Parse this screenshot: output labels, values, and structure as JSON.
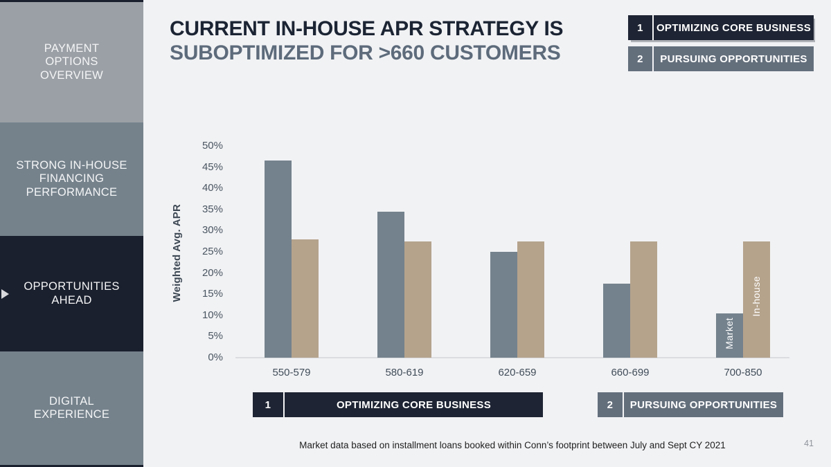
{
  "title": {
    "line1": "CURRENT IN-HOUSE APR STRATEGY IS",
    "line2": "SUBOPTIMIZED FOR >660 CUSTOMERS"
  },
  "sidebar": {
    "items": [
      {
        "label": "PAYMENT\nOPTIONS\nOVERVIEW",
        "active": false
      },
      {
        "label": "STRONG IN-HOUSE\nFINANCING\nPERFORMANCE",
        "active": false
      },
      {
        "label": "OPPORTUNITIES\nAHEAD",
        "active": true
      },
      {
        "label": "DIGITAL\nEXPERIENCE",
        "active": false
      }
    ]
  },
  "top_legend": {
    "items": [
      {
        "number": "1",
        "label": "OPTIMIZING CORE BUSINESS"
      },
      {
        "number": "2",
        "label": "PURSUING OPPORTUNITIES"
      }
    ]
  },
  "bottom_legend": {
    "items": [
      {
        "number": "1",
        "label": "OPTIMIZING CORE BUSINESS"
      },
      {
        "number": "2",
        "label": "PURSUING OPPORTUNITIES"
      }
    ]
  },
  "chart_data": {
    "type": "bar",
    "title": "",
    "xlabel": "",
    "ylabel": "Weighted Avg. APR",
    "categories": [
      "550-579",
      "580-619",
      "620-659",
      "660-699",
      "700-850"
    ],
    "series": [
      {
        "name": "Market",
        "color": "#74828D",
        "values": [
          46.5,
          34.5,
          25.0,
          17.5,
          10.5
        ]
      },
      {
        "name": "In-house",
        "color": "#B5A38C",
        "values": [
          28.0,
          27.5,
          27.5,
          27.5,
          27.5
        ]
      }
    ],
    "ylim": [
      0,
      50
    ],
    "ytick_step": 5,
    "ytick_format": "percent",
    "grid": false,
    "legend_position": "series names rotated inside last category bars; grouping bands labeled 1 Optimizing Core Business (550-659) and 2 Pursuing Opportunities (660-850)"
  },
  "footnote": "Market data based on installment loans booked within Conn’s footprint between July and Sept CY 2021",
  "page_number": "41",
  "colors": {
    "background": "#F1F2F4",
    "dark_navy": "#1B202E",
    "slate_gray": "#75828C",
    "light_gray_panel": "#9BA0A6",
    "market_bar": "#74828D",
    "inhouse_bar": "#B5A38C",
    "legend_gray": "#646F7C",
    "title_primary": "#1B2433",
    "title_secondary": "#5D6B7B"
  }
}
